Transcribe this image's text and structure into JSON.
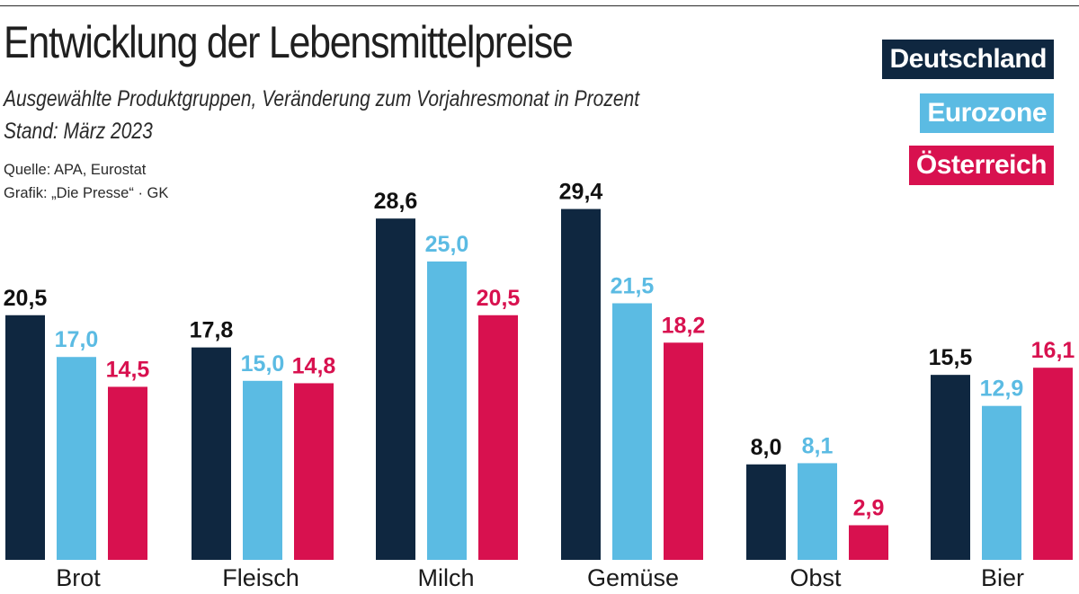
{
  "chart_data": {
    "type": "bar",
    "title": "Entwicklung der Lebensmittelpreise",
    "subtitle": "Ausgewählte Produktgruppen, Veränderung zum Vorjahresmonat in Prozent",
    "stand": "Stand: März 2023",
    "source": "Quelle: APA, Eurostat",
    "credit": "Grafik: „Die Presse“ · GK",
    "categories": [
      "Brot",
      "Fleisch",
      "Milch",
      "Gemüse",
      "Obst",
      "Bier"
    ],
    "series": [
      {
        "name": "Deutschland",
        "color": "#0f2740",
        "values": [
          20.5,
          17.8,
          28.6,
          29.4,
          8.0,
          15.5
        ],
        "labels": [
          "20,5",
          "17,8",
          "28,6",
          "29,4",
          "8,0",
          "15,5"
        ]
      },
      {
        "name": "Eurozone",
        "color": "#5bbbe3",
        "values": [
          17.0,
          15.0,
          25.0,
          21.5,
          8.1,
          12.9
        ],
        "labels": [
          "17,0",
          "15,0",
          "25,0",
          "21,5",
          "8,1",
          "12,9"
        ]
      },
      {
        "name": "Österreich",
        "color": "#d8114f",
        "values": [
          14.5,
          14.8,
          20.5,
          18.2,
          2.9,
          16.1
        ],
        "labels": [
          "14,5",
          "14,8",
          "20,5",
          "18,2",
          "2,9",
          "16,1"
        ]
      }
    ],
    "xlabel": "",
    "ylabel": "",
    "ylim": [
      0,
      31
    ],
    "grid": false,
    "legend_position": "top-right"
  }
}
